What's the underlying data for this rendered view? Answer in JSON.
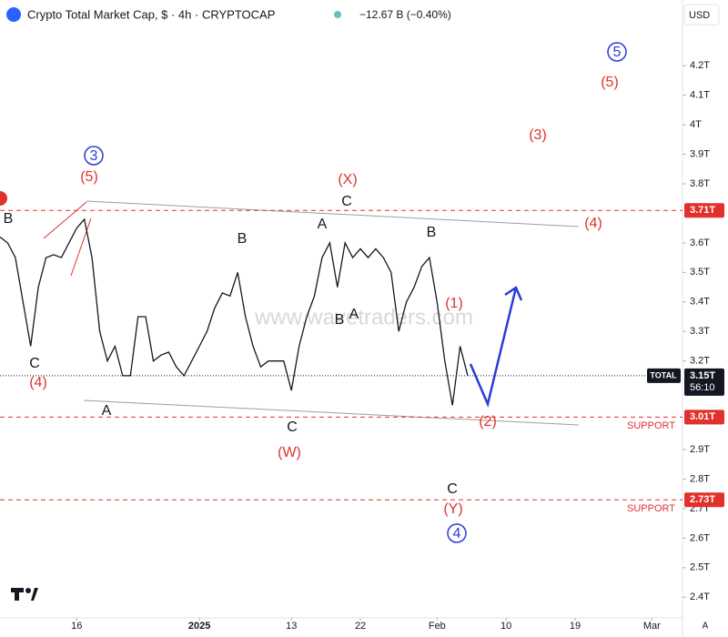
{
  "header": {
    "title": "Crypto Total Market Cap, $ · 4h · CRYPTOCAP",
    "change": "−12.67 B (−0.40%)",
    "currency": "USD"
  },
  "chart_data": {
    "type": "line",
    "color": "#131722",
    "x": [
      "2024-12-06",
      "2024-12-07",
      "2024-12-08",
      "2024-12-09",
      "2024-12-10",
      "2024-12-11",
      "2024-12-12",
      "2024-12-13",
      "2024-12-14",
      "2024-12-15",
      "2024-12-16",
      "2024-12-17",
      "2024-12-18",
      "2024-12-19",
      "2024-12-20",
      "2024-12-21",
      "2024-12-22",
      "2024-12-23",
      "2024-12-24",
      "2024-12-25",
      "2024-12-26",
      "2024-12-27",
      "2024-12-28",
      "2024-12-29",
      "2024-12-30",
      "2024-12-31",
      "2025-01-01",
      "2025-01-02",
      "2025-01-03",
      "2025-01-04",
      "2025-01-05",
      "2025-01-06",
      "2025-01-07",
      "2025-01-08",
      "2025-01-09",
      "2025-01-10",
      "2025-01-11",
      "2025-01-12",
      "2025-01-13",
      "2025-01-14",
      "2025-01-15",
      "2025-01-16",
      "2025-01-17",
      "2025-01-18",
      "2025-01-19",
      "2025-01-20",
      "2025-01-21",
      "2025-01-22",
      "2025-01-23",
      "2025-01-24",
      "2025-01-25",
      "2025-01-26",
      "2025-01-27",
      "2025-01-28",
      "2025-01-29",
      "2025-01-30",
      "2025-01-31",
      "2025-02-01",
      "2025-02-02",
      "2025-02-03",
      "2025-02-04",
      "2025-02-05"
    ],
    "values": [
      3.62,
      3.6,
      3.55,
      3.4,
      3.25,
      3.45,
      3.55,
      3.56,
      3.55,
      3.6,
      3.65,
      3.68,
      3.55,
      3.3,
      3.2,
      3.25,
      3.15,
      3.15,
      3.35,
      3.35,
      3.2,
      3.22,
      3.23,
      3.18,
      3.15,
      3.2,
      3.25,
      3.3,
      3.38,
      3.43,
      3.42,
      3.5,
      3.35,
      3.25,
      3.18,
      3.2,
      3.2,
      3.2,
      3.1,
      3.25,
      3.35,
      3.42,
      3.55,
      3.6,
      3.45,
      3.6,
      3.55,
      3.58,
      3.55,
      3.58,
      3.55,
      3.5,
      3.3,
      3.4,
      3.45,
      3.52,
      3.55,
      3.4,
      3.2,
      3.05,
      3.25,
      3.15
    ],
    "xlim": [
      "2024-12-06",
      "2025-03-05"
    ],
    "xticks": [
      {
        "value": "2024-12-16",
        "label": "16"
      },
      {
        "value": "2025-01-01",
        "label": "2025"
      },
      {
        "value": "2025-01-13",
        "label": "13"
      },
      {
        "value": "2025-01-22",
        "label": "22"
      },
      {
        "value": "2025-02-01",
        "label": "Feb"
      },
      {
        "value": "2025-02-10",
        "label": "10"
      },
      {
        "value": "2025-02-19",
        "label": "19"
      },
      {
        "value": "2025-03-01",
        "label": "Mar"
      }
    ],
    "ylim": [
      2.33,
      4.33
    ],
    "yticks": [
      {
        "value": 4.2,
        "label": "4.2T"
      },
      {
        "value": 4.1,
        "label": "4.1T"
      },
      {
        "value": 4,
        "label": "4T"
      },
      {
        "value": 3.9,
        "label": "3.9T"
      },
      {
        "value": 3.8,
        "label": "3.8T"
      },
      {
        "value": 3.6,
        "label": "3.6T"
      },
      {
        "value": 3.5,
        "label": "3.5T"
      },
      {
        "value": 3.4,
        "label": "3.4T"
      },
      {
        "value": 3.3,
        "label": "3.3T"
      },
      {
        "value": 3.2,
        "label": "3.2T"
      },
      {
        "value": 2.9,
        "label": "2.9T"
      },
      {
        "value": 2.8,
        "label": "2.8T"
      },
      {
        "value": 2.7,
        "label": "2.7T"
      },
      {
        "value": 2.6,
        "label": "2.6T"
      },
      {
        "value": 2.5,
        "label": "2.5T"
      },
      {
        "value": 2.4,
        "label": "2.4T"
      }
    ],
    "levels": [
      {
        "value": 3.71,
        "label": "3.71T"
      },
      {
        "value": 3.01,
        "label": "3.01T"
      },
      {
        "value": 2.73,
        "label": "2.73T"
      }
    ],
    "level_color": "#e0312d",
    "support_label": "SUPPORT",
    "last": {
      "value": 3.15,
      "label": "3.15T",
      "symbol": "TOTAL",
      "countdown": "56:10"
    },
    "watermark": "www.wavetraders.com",
    "annotations": [
      "3",
      "(5)",
      "B",
      "C",
      "(4)",
      "A",
      "B",
      "C",
      "(W)",
      "(X)",
      "C",
      "A",
      "B",
      "A",
      "B",
      "(1)",
      "C",
      "(Y)",
      "4",
      "(2)",
      "(4)",
      "(3)",
      "(5)",
      "5"
    ]
  }
}
